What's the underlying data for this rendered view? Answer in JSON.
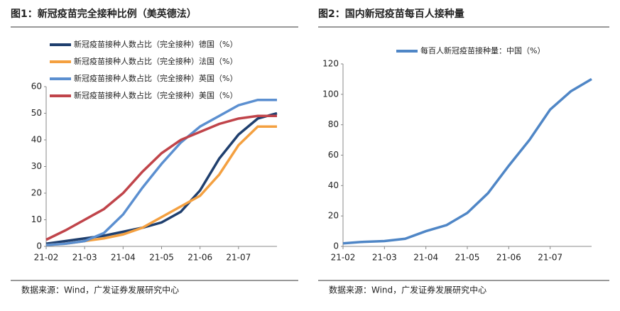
{
  "chart_data": [
    {
      "type": "line",
      "title": "图1：新冠疫苗完全接种比例（美英德法）",
      "categories": [
        "21-02",
        null,
        "21-03",
        null,
        "21-04",
        null,
        "21-05",
        null,
        "21-06",
        null,
        "21-07",
        null,
        null
      ],
      "series": [
        {
          "name": "新冠疫苗接种人数占比（完全接种）德国（%）",
          "color": "#1f3f6e",
          "values": [
            1,
            2,
            3,
            4,
            5.5,
            7,
            9,
            13,
            21,
            33,
            42,
            48,
            50
          ]
        },
        {
          "name": "新冠疫苗接种人数占比（完全接种）法国（%）",
          "color": "#f4a040",
          "values": [
            0.5,
            1,
            2,
            3,
            4.5,
            7,
            11,
            15,
            19,
            27,
            38,
            45,
            45
          ]
        },
        {
          "name": "新冠疫苗接种人数占比（完全接种）英国（%）",
          "color": "#5b8fd0",
          "values": [
            0.5,
            1,
            2,
            5,
            12,
            22,
            31,
            39,
            45,
            49,
            53,
            55,
            55
          ]
        },
        {
          "name": "新冠疫苗接种人数占比（完全接种）美国（%）",
          "color": "#c0444a",
          "values": [
            2.5,
            6,
            10,
            14,
            20,
            28,
            35,
            40,
            43,
            46,
            48,
            49,
            49
          ]
        }
      ],
      "ylim": [
        0,
        60
      ],
      "yticks": [
        0,
        10,
        20,
        30,
        40,
        50,
        60
      ],
      "legend": "upper-left",
      "source": "数据来源：Wind，广发证券发展研究中心"
    },
    {
      "type": "line",
      "title": "图2：国内新冠疫苗每百人接种量",
      "categories": [
        "21-02",
        null,
        "21-03",
        null,
        "21-04",
        null,
        "21-05",
        null,
        "21-06",
        null,
        "21-07",
        null,
        null
      ],
      "series": [
        {
          "name": "每百人新冠疫苗接种量：中国（%）",
          "color": "#4f86c6",
          "values": [
            2,
            3,
            3.5,
            5,
            10,
            14,
            22,
            35,
            53,
            70,
            90,
            102,
            110
          ]
        }
      ],
      "ylim": [
        0,
        120
      ],
      "yticks": [
        0,
        20,
        40,
        60,
        80,
        100,
        120
      ],
      "legend": "upper-center",
      "source": "数据来源：Wind，广发证券发展研究中心"
    }
  ]
}
